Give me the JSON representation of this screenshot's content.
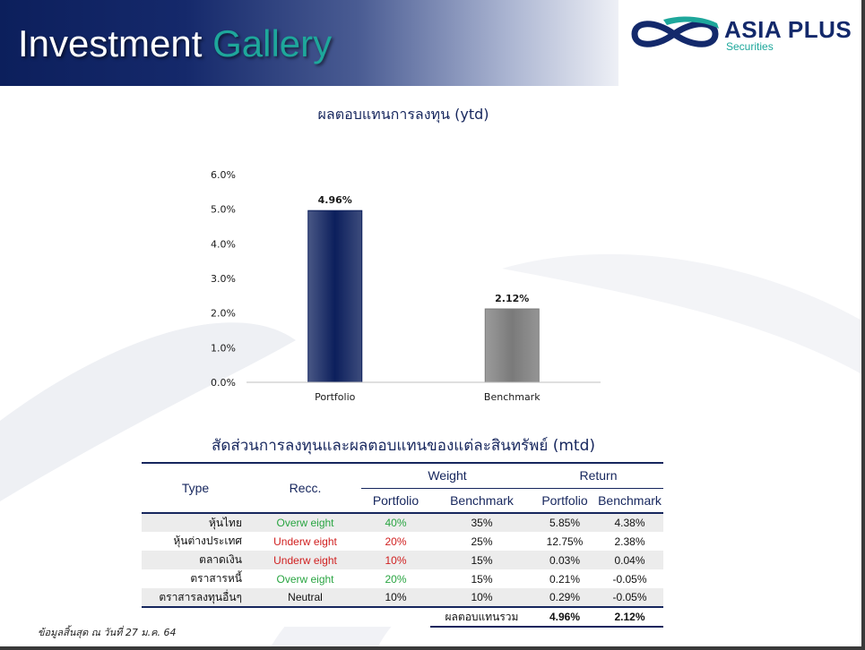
{
  "header": {
    "title_main": "Investment",
    "title_accent": "Gallery",
    "accent_color": "#1ea79b",
    "band_color": "#0c1f5c"
  },
  "logo": {
    "name": "ASIA PLUS",
    "subtitle": "Securities",
    "brand_color": "#13296b"
  },
  "chart_data": {
    "type": "bar",
    "title": "ผลตอบแทนการลงทุน (ytd)",
    "categories": [
      "Portfolio",
      "Benchmark"
    ],
    "values": [
      4.96,
      2.12
    ],
    "data_labels": [
      "4.96%",
      "2.12%"
    ],
    "bar_colors": [
      "#0c1f5c",
      "#7a7a7a"
    ],
    "ylim": [
      0,
      6
    ],
    "yticks": [
      0,
      1,
      2,
      3,
      4,
      5,
      6
    ],
    "ytick_labels": [
      "0.0%",
      "1.0%",
      "2.0%",
      "3.0%",
      "4.0%",
      "5.0%",
      "6.0%"
    ],
    "grid": false,
    "legend": "none"
  },
  "table": {
    "title": "สัดส่วนการลงทุนและผลตอบแทนของแต่ละสินทรัพย์ (mtd)",
    "headers": {
      "type": "Type",
      "recc": "Recc.",
      "weight": "Weight",
      "return": "Return",
      "portfolio": "Portfolio",
      "benchmark": "Benchmark"
    },
    "rows": [
      {
        "type": "หุ้นไทย",
        "recc": "Overw eight",
        "recc_color": "#2aa542",
        "w_port": "40%",
        "w_port_color": "#2aa542",
        "w_bench": "35%",
        "r_port": "5.85%",
        "r_bench": "4.38%"
      },
      {
        "type": "หุ้นต่างประเทศ",
        "recc": "Underw eight",
        "recc_color": "#d01f1f",
        "w_port": "20%",
        "w_port_color": "#d01f1f",
        "w_bench": "25%",
        "r_port": "12.75%",
        "r_bench": "2.38%"
      },
      {
        "type": "ตลาดเงิน",
        "recc": "Underw eight",
        "recc_color": "#d01f1f",
        "w_port": "10%",
        "w_port_color": "#d01f1f",
        "w_bench": "15%",
        "r_port": "0.03%",
        "r_bench": "0.04%"
      },
      {
        "type": "ตราสารหนี้",
        "recc": "Overw eight",
        "recc_color": "#2aa542",
        "w_port": "20%",
        "w_port_color": "#2aa542",
        "w_bench": "15%",
        "r_port": "0.21%",
        "r_bench": "-0.05%"
      },
      {
        "type": "ตราสารลงทุนอื่นๆ",
        "recc": "Neutral",
        "recc_color": "#111111",
        "w_port": "10%",
        "w_port_color": "#111111",
        "w_bench": "10%",
        "r_port": "0.29%",
        "r_bench": "-0.05%"
      }
    ],
    "total": {
      "label": "ผลตอบแทนรวม",
      "r_port": "4.96%",
      "r_bench": "2.12%"
    }
  },
  "footnote": "ข้อมูลสิ้นสุด ณ วันที่ 27 ม.ค. 64"
}
